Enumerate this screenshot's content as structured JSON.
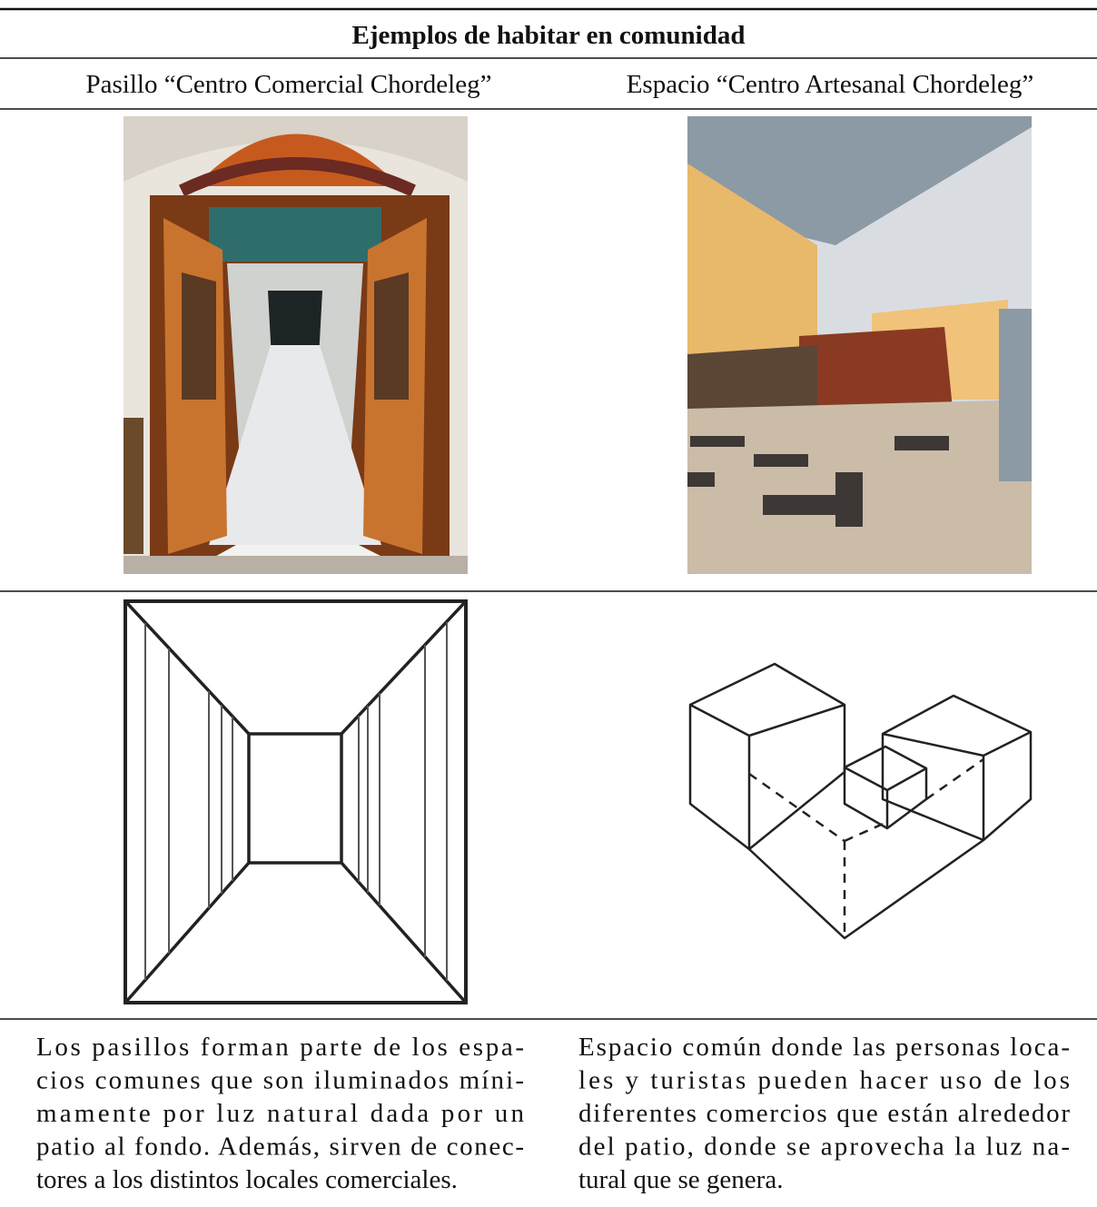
{
  "table": {
    "title": "Ejemplos de habitar en comunidad",
    "headers": [
      "Pasillo “Centro Comercial Chordeleg”",
      "Espacio “Centro Artesanal Chordeleg”"
    ],
    "descriptions": [
      [
        "Los pasillos forman parte de los espa-",
        "cios comunes que son iluminados míni-",
        "mamente por luz natural dada por un",
        "patio al fondo. Además, sirven de conec-",
        "tores a los distintos locales comerciales."
      ],
      [
        "Espacio común donde las personas loca-",
        "les y turistas pueden hacer uso de los",
        "diferentes comercios que están alrededor",
        "del patio, donde se aprovecha la luz na-",
        "tural que se genera."
      ]
    ]
  }
}
